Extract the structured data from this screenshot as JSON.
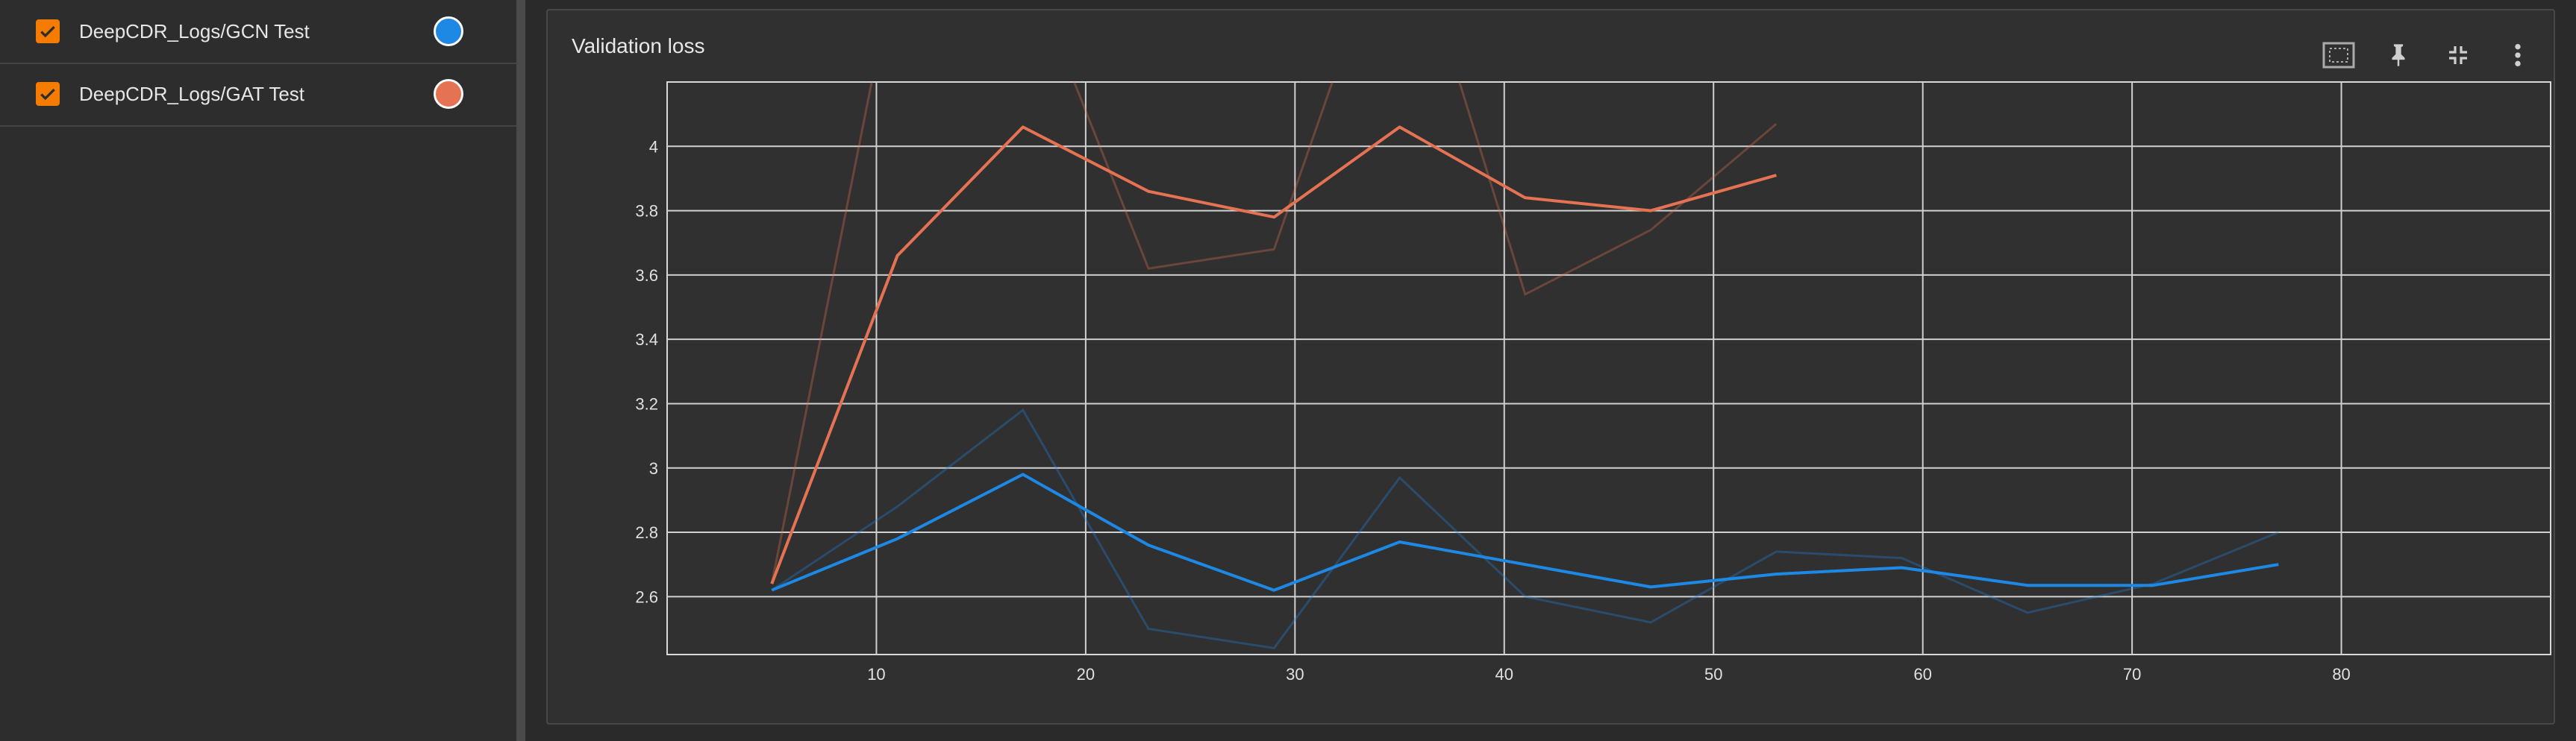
{
  "sidebar": {
    "runs": [
      {
        "label": "DeepCDR_Logs/GCN Test",
        "color": "#1e88e5",
        "checked": true
      },
      {
        "label": "DeepCDR_Logs/GAT Test",
        "color": "#e57252",
        "checked": true
      }
    ]
  },
  "card": {
    "title": "Validation loss",
    "tools": [
      "fit-domain-icon",
      "pin-icon",
      "collapse-icon",
      "more-vert-icon"
    ]
  },
  "chart_data": {
    "type": "line",
    "title": "Validation loss",
    "xlabel": "",
    "ylabel": "",
    "xlim": [
      0,
      90
    ],
    "ylim": [
      2.42,
      4.2
    ],
    "x_ticks": [
      10,
      20,
      30,
      40,
      50,
      60,
      70,
      80
    ],
    "y_ticks": [
      2.6,
      2.8,
      3,
      3.2,
      3.4,
      3.6,
      3.8,
      4
    ],
    "grid": true,
    "series": [
      {
        "name": "DeepCDR_Logs/GCN Test",
        "color": "#1e88e5",
        "smoothed": {
          "x": [
            5,
            11,
            17,
            23,
            29,
            35,
            41,
            47,
            53,
            59,
            65,
            71,
            77
          ],
          "y": [
            2.62,
            2.78,
            2.98,
            2.76,
            2.62,
            2.77,
            2.7,
            2.63,
            2.67,
            2.69,
            2.635,
            2.635,
            2.7
          ]
        },
        "raw": {
          "x": [
            5,
            11,
            17,
            23,
            29,
            35,
            41,
            47,
            53,
            59,
            65,
            71,
            77
          ],
          "y": [
            2.62,
            2.88,
            3.18,
            2.5,
            2.44,
            2.97,
            2.6,
            2.52,
            2.74,
            2.72,
            2.55,
            2.64,
            2.8
          ]
        }
      },
      {
        "name": "DeepCDR_Logs/GAT Test",
        "color": "#e57252",
        "smoothed": {
          "x": [
            5,
            11,
            17,
            23,
            29,
            35,
            41,
            47,
            53
          ],
          "y": [
            2.64,
            3.66,
            4.06,
            3.86,
            3.78,
            4.06,
            3.84,
            3.8,
            3.91
          ]
        },
        "raw": {
          "x": [
            5,
            11,
            17,
            23,
            29,
            35,
            41,
            47,
            53
          ],
          "y": [
            2.64,
            4.6,
            4.6,
            3.62,
            3.68,
            4.8,
            3.54,
            3.74,
            4.07
          ]
        }
      }
    ]
  }
}
